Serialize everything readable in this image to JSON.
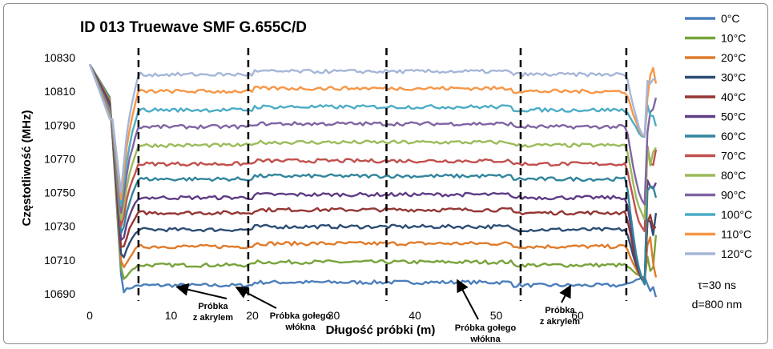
{
  "chart_data": {
    "type": "line",
    "title": "ID 013 Truewave SMF G.655C/D",
    "xlabel": "Długość próbki (m)",
    "ylabel": "Częstotliwość (MHz)",
    "xlim": [
      0,
      70
    ],
    "ylim": [
      10690,
      10840
    ],
    "x_ticks": [
      0,
      10,
      20,
      30,
      40,
      50,
      60
    ],
    "y_ticks": [
      10690,
      10710,
      10730,
      10750,
      10770,
      10790,
      10810,
      10830
    ],
    "grid": false,
    "legend_position": "right",
    "dashed_markers_x": [
      6,
      19.5,
      36.5,
      53,
      66
    ],
    "series": [
      {
        "name": "0°C",
        "color": "#4a7ebb",
        "plateau": 10695
      },
      {
        "name": "10°C",
        "color": "#77a33a",
        "plateau": 10707
      },
      {
        "name": "20°C",
        "color": "#e07b2a",
        "plateau": 10718
      },
      {
        "name": "30°C",
        "color": "#2c4d75",
        "plateau": 10728
      },
      {
        "name": "40°C",
        "color": "#943634",
        "plateau": 10738
      },
      {
        "name": "50°C",
        "color": "#5f3c85",
        "plateau": 10747
      },
      {
        "name": "60°C",
        "color": "#31859c",
        "plateau": 10758
      },
      {
        "name": "70°C",
        "color": "#c0504d",
        "plateau": 10767
      },
      {
        "name": "80°C",
        "color": "#9bbb59",
        "plateau": 10778
      },
      {
        "name": "90°C",
        "color": "#8064a2",
        "plateau": 10789
      },
      {
        "name": "100°C",
        "color": "#4bacc6",
        "plateau": 10799
      },
      {
        "name": "110°C",
        "color": "#f79646",
        "plateau": 10810
      },
      {
        "name": "120°C",
        "color": "#a5b6d8",
        "plateau": 10820
      }
    ],
    "annotations": [
      {
        "id": "acryl-left",
        "lines": [
          "Próbka",
          "z akrylem"
        ],
        "target_x": 11
      },
      {
        "id": "bare-left",
        "lines": [
          "Próbka gołego",
          "włókna"
        ],
        "target_x": 19.5
      },
      {
        "id": "bare-right",
        "lines": [
          "Próbka gołego",
          "włókna"
        ],
        "target_x": 46
      },
      {
        "id": "acryl-right",
        "lines": [
          "Próbka",
          "z akrylem"
        ],
        "target_x": 60
      }
    ],
    "notes": [
      "τ=30 ns",
      "d=800 nm"
    ]
  }
}
